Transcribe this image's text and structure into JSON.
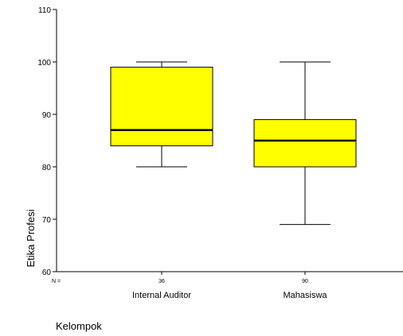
{
  "chart_data": {
    "type": "box",
    "xlabel": "Kelompok",
    "ylabel": "Etika Profesi",
    "ylim": [
      60,
      110
    ],
    "yticks": [
      60,
      70,
      80,
      90,
      100,
      110
    ],
    "n_label": "N =",
    "box_color": "#ffff00",
    "categories": [
      "Internal Auditor",
      "Mahasiswa"
    ],
    "n_values": [
      "36",
      "90"
    ],
    "boxes": [
      {
        "name": "Internal Auditor",
        "min": 80,
        "q1": 84,
        "median": 87,
        "q3": 99,
        "max": 100
      },
      {
        "name": "Mahasiswa",
        "min": 69,
        "q1": 80,
        "median": 85,
        "q3": 89,
        "max": 100
      }
    ]
  }
}
